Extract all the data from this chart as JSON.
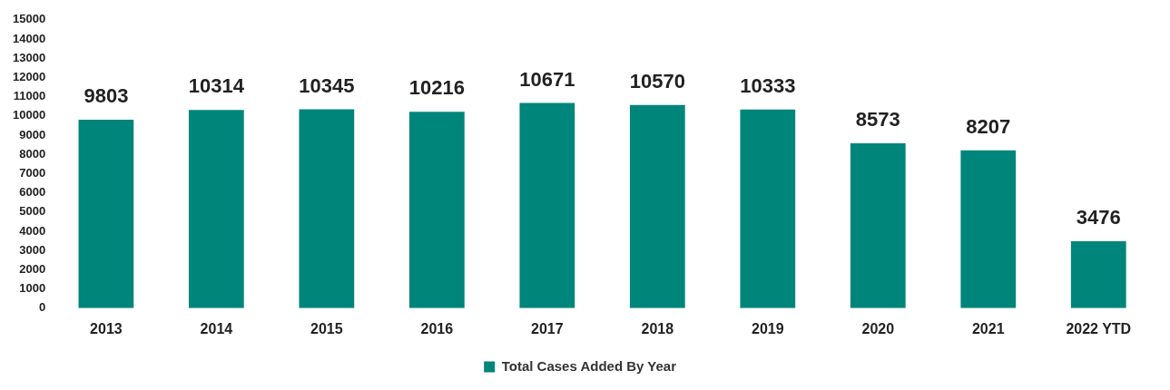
{
  "chart_data": {
    "type": "bar",
    "categories": [
      "2013",
      "2014",
      "2015",
      "2016",
      "2017",
      "2018",
      "2019",
      "2020",
      "2021",
      "2022 YTD"
    ],
    "series": [
      {
        "name": "Total Cases Added By Year",
        "color": "#00857a",
        "values": [
          9803,
          10314,
          10345,
          10216,
          10671,
          10570,
          10333,
          8573,
          8207,
          3476
        ]
      }
    ],
    "ylim": [
      0,
      15000
    ],
    "yticks": [
      0,
      1000,
      2000,
      3000,
      4000,
      5000,
      6000,
      7000,
      8000,
      9000,
      10000,
      11000,
      12000,
      13000,
      14000,
      15000
    ],
    "data_labels": true,
    "legend": "bottom"
  }
}
